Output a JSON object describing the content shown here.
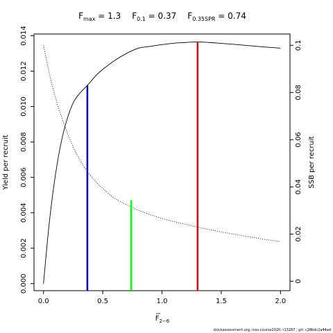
{
  "chart_data": {
    "type": "line",
    "title": {
      "fmax_sym": "F",
      "fmax_sub": "max",
      "fmax_val": " = 1.3",
      "f01_sym": "F",
      "f01_sub": "0.1",
      "f01_val": " = 0.37",
      "fspr_sym": "F",
      "fspr_sub": "0.35SPR",
      "fspr_val": " = 0.74"
    },
    "xlabel": "F",
    "xlabel_sub": "2−6",
    "ylabel_left": "Yield per recruit",
    "ylabel_right": "SSB per recruit",
    "xlim": [
      -0.08,
      2.08
    ],
    "ylim_left": [
      -0.0004,
      0.0141
    ],
    "ylim_right": [
      -0.004,
      0.1048
    ],
    "x_ticks": [
      0,
      0.5,
      1,
      1.5,
      2
    ],
    "x_tick_labels": [
      "0.0",
      "0.5",
      "1.0",
      "1.5",
      "2.0"
    ],
    "y_left_ticks": [
      0,
      0.002,
      0.004,
      0.006,
      0.008,
      0.01,
      0.012,
      0.014
    ],
    "y_left_tick_labels": [
      "0.000",
      "0.002",
      "0.004",
      "0.006",
      "0.008",
      "0.010",
      "0.012",
      "0.014"
    ],
    "y_right_ticks": [
      0,
      0.02,
      0.04,
      0.06,
      0.08,
      0.1
    ],
    "y_right_tick_labels": [
      "0",
      "0.02",
      "0.04",
      "0.06",
      "0.08",
      "0.1"
    ],
    "series": [
      {
        "axis": "left",
        "style": "solid",
        "color": "#000000",
        "x": [
          0,
          0.05,
          0.1,
          0.15,
          0.2,
          0.25,
          0.3,
          0.37,
          0.45,
          0.5,
          0.6,
          0.7,
          0.8,
          0.9,
          1.0,
          1.1,
          1.2,
          1.3,
          1.4,
          1.5,
          1.6,
          1.7,
          1.8,
          1.9,
          2.0
        ],
        "y": [
          0.0,
          0.0035,
          0.0061,
          0.008,
          0.0093,
          0.0102,
          0.0107,
          0.0112,
          0.0118,
          0.0121,
          0.0126,
          0.013,
          0.0133,
          0.0134,
          0.0135,
          0.01358,
          0.01362,
          0.01365,
          0.01362,
          0.01357,
          0.01352,
          0.01346,
          0.0134,
          0.01335,
          0.0133
        ]
      },
      {
        "axis": "right",
        "style": "dotted",
        "color": "#000000",
        "x": [
          0,
          0.05,
          0.1,
          0.15,
          0.2,
          0.25,
          0.3,
          0.37,
          0.45,
          0.5,
          0.6,
          0.74,
          0.8,
          0.9,
          1.0,
          1.1,
          1.2,
          1.3,
          1.4,
          1.5,
          1.6,
          1.7,
          1.8,
          1.9,
          2.0
        ],
        "y": [
          0.1,
          0.088,
          0.078,
          0.07,
          0.063,
          0.057,
          0.052,
          0.0465,
          0.0418,
          0.0393,
          0.0352,
          0.0315,
          0.0301,
          0.0282,
          0.0266,
          0.0253,
          0.0241,
          0.023,
          0.0219,
          0.0209,
          0.02,
          0.0191,
          0.0183,
          0.0175,
          0.0168
        ]
      }
    ],
    "reference_lines": [
      {
        "x": 0.37,
        "y_left": 0.0112,
        "color": "#0000ff"
      },
      {
        "x": 0.74,
        "y_left": 0.00472,
        "color": "#00ff00"
      },
      {
        "x": 1.3,
        "y_left": 0.01365,
        "color": "#ff0000"
      }
    ]
  },
  "footer": "stockassessment.org, ices-course2020, r13287 ,  git: c28bdc2a44ad"
}
